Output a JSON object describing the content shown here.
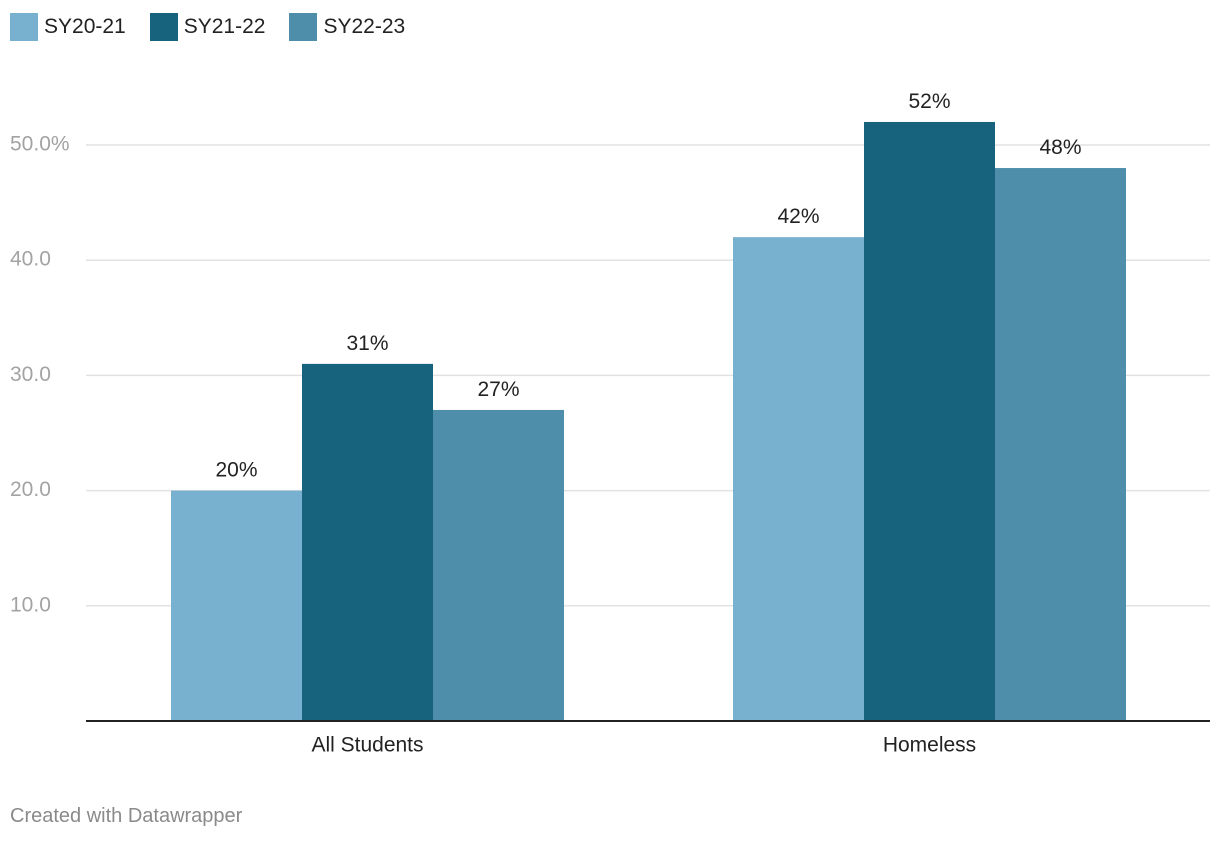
{
  "chart_data": {
    "type": "bar",
    "categories": [
      "All Students",
      "Homeless"
    ],
    "series": [
      {
        "name": "SY20-21",
        "values": [
          20,
          42
        ],
        "color": "#78b1cf",
        "labels": [
          "20%",
          "42%"
        ]
      },
      {
        "name": "SY21-22",
        "values": [
          31,
          52
        ],
        "color": "#17637d",
        "labels": [
          "31%",
          "52%"
        ]
      },
      {
        "name": "SY22-23",
        "values": [
          27,
          48
        ],
        "color": "#4f8eab",
        "labels": [
          "27%",
          "48%"
        ]
      }
    ],
    "y_ticks": [
      {
        "value": 10,
        "label": "10.0"
      },
      {
        "value": 20,
        "label": "20.0"
      },
      {
        "value": 30,
        "label": "30.0"
      },
      {
        "value": 40,
        "label": "40.0"
      },
      {
        "value": 50,
        "label": "50.0%"
      }
    ],
    "ylim": [
      0,
      55
    ],
    "grid": true,
    "legend_position": "top-left"
  },
  "footer": {
    "credit": "Created with Datawrapper"
  }
}
